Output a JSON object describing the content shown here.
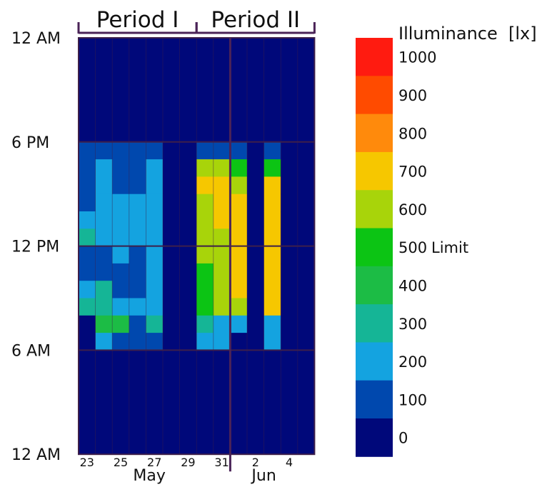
{
  "chart_data": {
    "type": "heatmap",
    "title": "",
    "colorbar": {
      "title": "Illuminance  [lx]",
      "ticks": [
        "0",
        "100",
        "200",
        "300",
        "400",
        "500",
        "600",
        "700",
        "800",
        "900",
        "1000"
      ],
      "limit_label": "Limit",
      "limit_value": 500,
      "colors": [
        "#00087a",
        "#0048ae",
        "#14a3e0",
        "#15b596",
        "#1cbc45",
        "#0cc414",
        "#a8d40a",
        "#f6c700",
        "#ff8a0c",
        "#ff4b00",
        "#ff1b10"
      ]
    },
    "y_ticks": [
      "12 AM",
      "6 PM",
      "12 PM",
      "6 AM",
      "12 AM"
    ],
    "x_ticks": [
      "23",
      "25",
      "27",
      "29",
      "31",
      "2",
      "4"
    ],
    "months": [
      "May",
      "Jun"
    ],
    "periods": [
      "Period I",
      "Period II"
    ],
    "days": [
      "May 23",
      "May 24",
      "May 25",
      "May 26",
      "May 27",
      "May 28",
      "May 29",
      "May 30",
      "May 31",
      "Jun 1",
      "Jun 2",
      "Jun 3",
      "Jun 4",
      "Jun 5"
    ],
    "hours_from_top": [
      24,
      23,
      22,
      21,
      20,
      19,
      18,
      17,
      16,
      15,
      14,
      13,
      12,
      11,
      10,
      9,
      8,
      7,
      6,
      5,
      4,
      3,
      2,
      1
    ],
    "hour_ticks": [
      24,
      18,
      12,
      6,
      0
    ],
    "values_by_day": [
      [
        0,
        0,
        0,
        0,
        0,
        0,
        100,
        100,
        100,
        150,
        250,
        300,
        150,
        150,
        200,
        300,
        0,
        0,
        0,
        0,
        0,
        0,
        0,
        0
      ],
      [
        0,
        0,
        0,
        0,
        0,
        0,
        100,
        200,
        200,
        200,
        200,
        200,
        150,
        150,
        300,
        350,
        400,
        200,
        0,
        0,
        0,
        0,
        0,
        0
      ],
      [
        0,
        0,
        0,
        0,
        0,
        0,
        100,
        100,
        150,
        200,
        200,
        200,
        200,
        150,
        150,
        200,
        400,
        100,
        0,
        0,
        0,
        0,
        0,
        0
      ],
      [
        0,
        0,
        0,
        0,
        0,
        0,
        100,
        150,
        150,
        250,
        250,
        250,
        100,
        100,
        150,
        200,
        150,
        100,
        0,
        0,
        0,
        0,
        0,
        0
      ],
      [
        0,
        0,
        0,
        0,
        0,
        0,
        100,
        200,
        200,
        250,
        250,
        250,
        250,
        200,
        200,
        200,
        300,
        100,
        0,
        0,
        0,
        0,
        0,
        0
      ],
      [
        0,
        0,
        0,
        0,
        0,
        0,
        0,
        0,
        0,
        0,
        0,
        0,
        0,
        0,
        0,
        0,
        0,
        0,
        0,
        0,
        0,
        0,
        0,
        0
      ],
      [
        0,
        0,
        0,
        0,
        0,
        0,
        0,
        0,
        0,
        0,
        0,
        0,
        0,
        0,
        0,
        0,
        0,
        0,
        0,
        0,
        0,
        0,
        0,
        0
      ],
      [
        0,
        0,
        0,
        0,
        0,
        0,
        100,
        600,
        750,
        650,
        650,
        650,
        650,
        500,
        500,
        500,
        300,
        200,
        0,
        0,
        0,
        0,
        0,
        0
      ],
      [
        0,
        0,
        0,
        0,
        0,
        0,
        100,
        600,
        750,
        750,
        750,
        650,
        650,
        650,
        650,
        650,
        200,
        200,
        0,
        0,
        0,
        0,
        0,
        0
      ],
      [
        0,
        0,
        0,
        0,
        0,
        0,
        100,
        500,
        600,
        700,
        700,
        700,
        700,
        700,
        700,
        600,
        200,
        0,
        0,
        0,
        0,
        0,
        0,
        0
      ],
      [
        0,
        0,
        0,
        0,
        0,
        0,
        0,
        0,
        0,
        0,
        0,
        0,
        0,
        0,
        0,
        0,
        0,
        0,
        0,
        0,
        0,
        0,
        0,
        0
      ],
      [
        0,
        0,
        0,
        0,
        0,
        0,
        100,
        500,
        700,
        700,
        700,
        700,
        700,
        700,
        750,
        750,
        200,
        200,
        0,
        0,
        0,
        0,
        0,
        0
      ],
      [
        0,
        0,
        0,
        0,
        0,
        0,
        0,
        0,
        0,
        0,
        0,
        0,
        0,
        0,
        0,
        0,
        0,
        0,
        0,
        0,
        0,
        0,
        0,
        0
      ],
      [
        0,
        0,
        0,
        0,
        0,
        0,
        0,
        0,
        0,
        0,
        0,
        0,
        0,
        0,
        0,
        0,
        0,
        0,
        0,
        0,
        0,
        0,
        0,
        0
      ]
    ]
  }
}
